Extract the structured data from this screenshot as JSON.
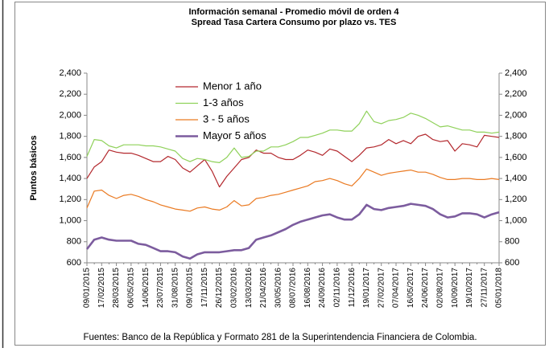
{
  "chart_data": {
    "type": "line",
    "title": "Información semanal - Promedio móvil de orden 4",
    "subtitle": "Spread Tasa Cartera Consumo por plazo vs. TES",
    "ylabel": "Puntos básicos",
    "note": "Fuentes: Banco de la República y Formato 281 de la Superintendencia Financiera de Colombia.",
    "categories": [
      "09/01/2015",
      null,
      "17/02/2015",
      null,
      "28/03/2015",
      null,
      "06/05/2015",
      null,
      "14/06/2015",
      null,
      "23/07/2015",
      null,
      "31/08/2015",
      null,
      "09/10/2015",
      null,
      "17/11/2015",
      null,
      "26/12/2015",
      null,
      "03/02/2016",
      null,
      "13/03/2016",
      null,
      "21/04/2016",
      null,
      "30/05/2016",
      null,
      "08/07/2016",
      null,
      "16/08/2016",
      null,
      "24/09/2016",
      null,
      "02/11/2016",
      null,
      "11/12/2016",
      null,
      "19/01/2017",
      null,
      "27/02/2017",
      null,
      "07/04/2017",
      null,
      "16/05/2017",
      null,
      "24/06/2017",
      null,
      "02/08/2017",
      null,
      "10/09/2017",
      null,
      "19/10/2017",
      null,
      "27/11/2017",
      null,
      "05/01/2018"
    ],
    "series": [
      {
        "name": "Menor 1 año",
        "color": "#b3282d",
        "width": 1.2,
        "values": [
          1400,
          1510,
          1560,
          1670,
          1650,
          1640,
          1640,
          1620,
          1590,
          1560,
          1560,
          1610,
          1580,
          1500,
          1460,
          1520,
          1580,
          1470,
          1320,
          1420,
          1500,
          1580,
          1600,
          1670,
          1640,
          1640,
          1600,
          1580,
          1580,
          1620,
          1670,
          1650,
          1620,
          1680,
          1660,
          1610,
          1560,
          1620,
          1690,
          1700,
          1720,
          1770,
          1730,
          1760,
          1730,
          1800,
          1820,
          1770,
          1750,
          1760,
          1660,
          1730,
          1720,
          1700,
          1810,
          1800,
          1790
        ]
      },
      {
        "name": "1-3 años",
        "color": "#8fd15a",
        "width": 1.2,
        "values": [
          1610,
          1770,
          1760,
          1710,
          1690,
          1720,
          1720,
          1720,
          1710,
          1710,
          1700,
          1680,
          1660,
          1590,
          1560,
          1590,
          1580,
          1560,
          1550,
          1600,
          1690,
          1600,
          1610,
          1660,
          1660,
          1700,
          1700,
          1720,
          1750,
          1790,
          1790,
          1810,
          1830,
          1860,
          1860,
          1850,
          1850,
          1920,
          2040,
          1940,
          1920,
          1950,
          1960,
          1980,
          2020,
          2000,
          1970,
          1930,
          1890,
          1900,
          1880,
          1860,
          1860,
          1840,
          1840,
          1830,
          1840
        ]
      },
      {
        "name": "3 - 5 años",
        "color": "#ea7a22",
        "width": 1.2,
        "values": [
          1120,
          1280,
          1290,
          1240,
          1210,
          1240,
          1250,
          1230,
          1200,
          1180,
          1150,
          1130,
          1110,
          1100,
          1090,
          1120,
          1130,
          1110,
          1100,
          1130,
          1190,
          1140,
          1150,
          1210,
          1220,
          1240,
          1250,
          1270,
          1290,
          1310,
          1330,
          1370,
          1380,
          1400,
          1380,
          1350,
          1330,
          1400,
          1490,
          1460,
          1430,
          1450,
          1460,
          1470,
          1480,
          1460,
          1460,
          1440,
          1410,
          1390,
          1390,
          1400,
          1400,
          1390,
          1390,
          1400,
          1390
        ]
      },
      {
        "name": "Mayor 5 años",
        "color": "#7c5c9e",
        "width": 2.6,
        "values": [
          730,
          820,
          840,
          820,
          810,
          810,
          810,
          780,
          770,
          740,
          710,
          710,
          700,
          660,
          640,
          680,
          700,
          700,
          700,
          710,
          720,
          720,
          740,
          820,
          840,
          860,
          890,
          920,
          960,
          990,
          1010,
          1030,
          1050,
          1060,
          1030,
          1010,
          1010,
          1060,
          1150,
          1110,
          1100,
          1120,
          1130,
          1140,
          1160,
          1150,
          1140,
          1110,
          1060,
          1030,
          1040,
          1070,
          1070,
          1060,
          1030,
          1060,
          1080
        ]
      }
    ],
    "ylim": [
      600,
      2400
    ],
    "yticks": [
      {
        "value": 600,
        "label": "600"
      },
      {
        "value": 800,
        "label": "800"
      },
      {
        "value": 1000,
        "label": "1,000"
      },
      {
        "value": 1200,
        "label": "1,200"
      },
      {
        "value": 1400,
        "label": "1,400"
      },
      {
        "value": 1600,
        "label": "1,600"
      },
      {
        "value": 1800,
        "label": "1,800"
      },
      {
        "value": 2000,
        "label": "2,000"
      },
      {
        "value": 2200,
        "label": "2,200"
      },
      {
        "value": 2400,
        "label": "2,400"
      }
    ],
    "secondary_axis_mirror": true,
    "grid": false,
    "legend": "upper left"
  }
}
